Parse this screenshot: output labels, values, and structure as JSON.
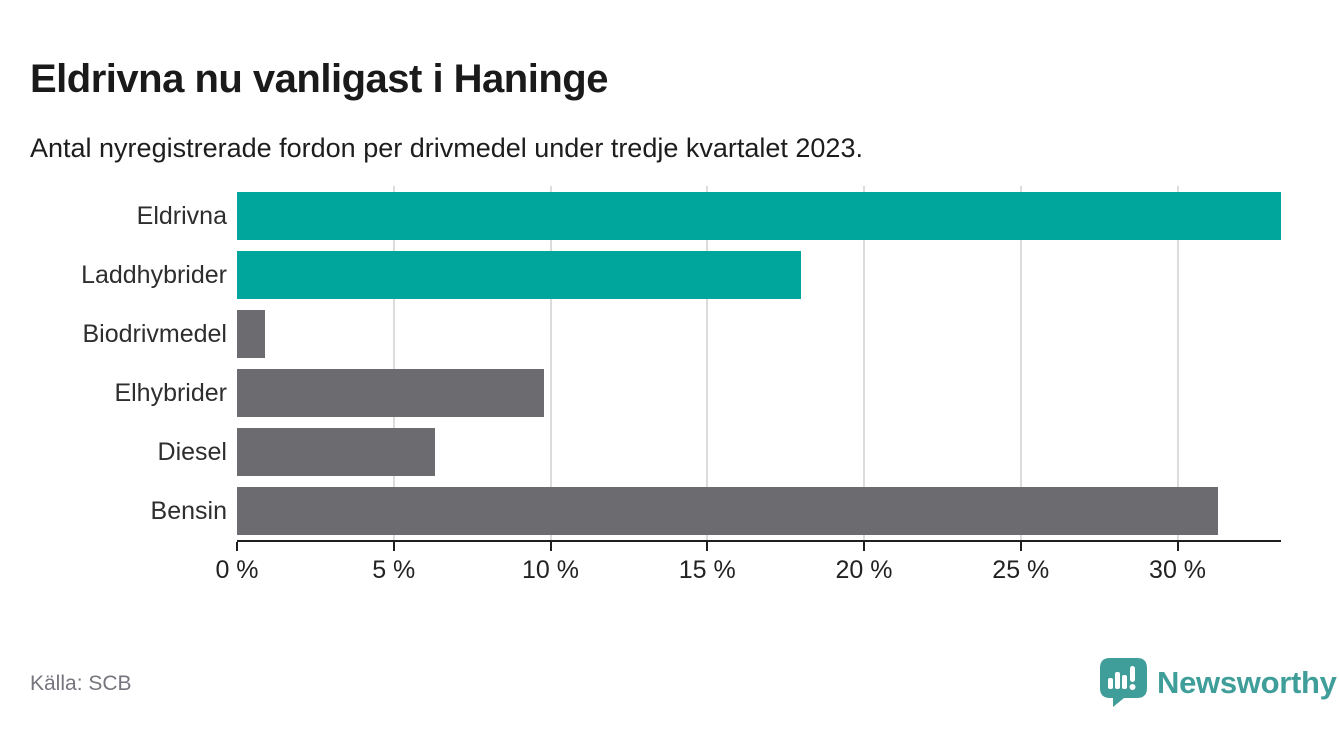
{
  "chart_data": {
    "type": "bar",
    "orientation": "horizontal",
    "title": "Eldrivna nu vanligast i Haninge",
    "subtitle": "Antal nyregistrerade fordon per drivmedel under tredje kvartalet 2023.",
    "categories": [
      "Eldrivna",
      "Laddhybrider",
      "Biodrivmedel",
      "Elhybrider",
      "Diesel",
      "Bensin"
    ],
    "values": [
      33.3,
      18.0,
      0.9,
      9.8,
      6.3,
      31.3
    ],
    "unit": "%",
    "xlim": [
      0,
      33.3
    ],
    "xticks": [
      0,
      5,
      10,
      15,
      20,
      25,
      30
    ],
    "xtick_labels": [
      "0 %",
      "5 %",
      "10 %",
      "15 %",
      "20 %",
      "25 %",
      "30 %"
    ],
    "grid": true,
    "legend": "none",
    "bar_colors": [
      "#00a69c",
      "#00a69c",
      "#6c6b70",
      "#6c6b70",
      "#6c6b70",
      "#6c6b70"
    ]
  },
  "colors": {
    "accent_teal": "#00a69c",
    "neutral_gray": "#6c6b70",
    "gridline": "#dcdcdc",
    "axis": "#1f1f1f",
    "logo_teal": "#3f9e99"
  },
  "footer": {
    "source": "Källa: SCB",
    "brand": "Newsworthy"
  }
}
